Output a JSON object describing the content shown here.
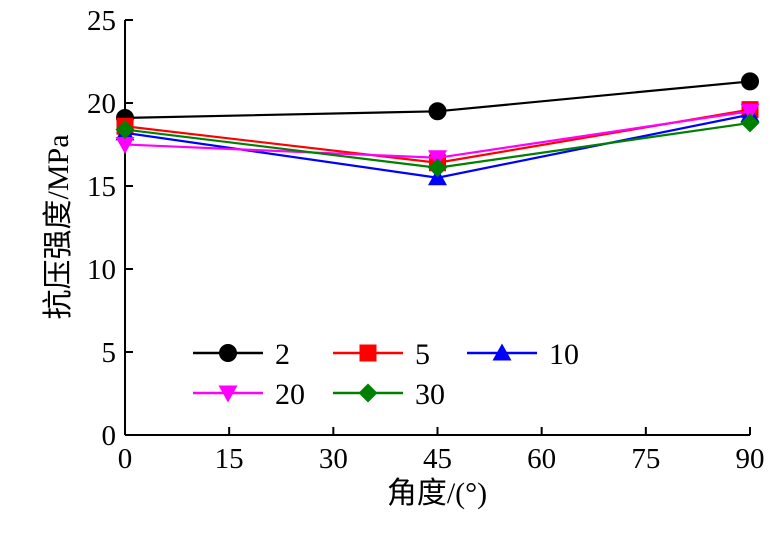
{
  "chart_data": {
    "type": "line",
    "title": "",
    "xlabel": "角度/(°)",
    "ylabel": "抗压强度/MPa",
    "x": [
      0,
      45,
      90
    ],
    "xlim": [
      0,
      90
    ],
    "ylim": [
      0,
      25
    ],
    "xticks": [
      0,
      15,
      30,
      45,
      60,
      75,
      90
    ],
    "yticks": [
      0,
      5,
      10,
      15,
      20,
      25
    ],
    "grid": false,
    "legend_position": "bottom-left",
    "series": [
      {
        "name": "2",
        "values": [
          19.1,
          19.5,
          21.3
        ],
        "color": "#000000",
        "marker": "circle"
      },
      {
        "name": "5",
        "values": [
          18.6,
          16.4,
          19.6
        ],
        "color": "#ff0000",
        "marker": "square"
      },
      {
        "name": "10",
        "values": [
          18.2,
          15.5,
          19.3
        ],
        "color": "#0000ff",
        "marker": "triangle-up"
      },
      {
        "name": "20",
        "values": [
          17.5,
          16.7,
          19.5
        ],
        "color": "#ff00ff",
        "marker": "triangle-down"
      },
      {
        "name": "30",
        "values": [
          18.4,
          16.1,
          18.8
        ],
        "color": "#008000",
        "marker": "diamond"
      }
    ]
  }
}
